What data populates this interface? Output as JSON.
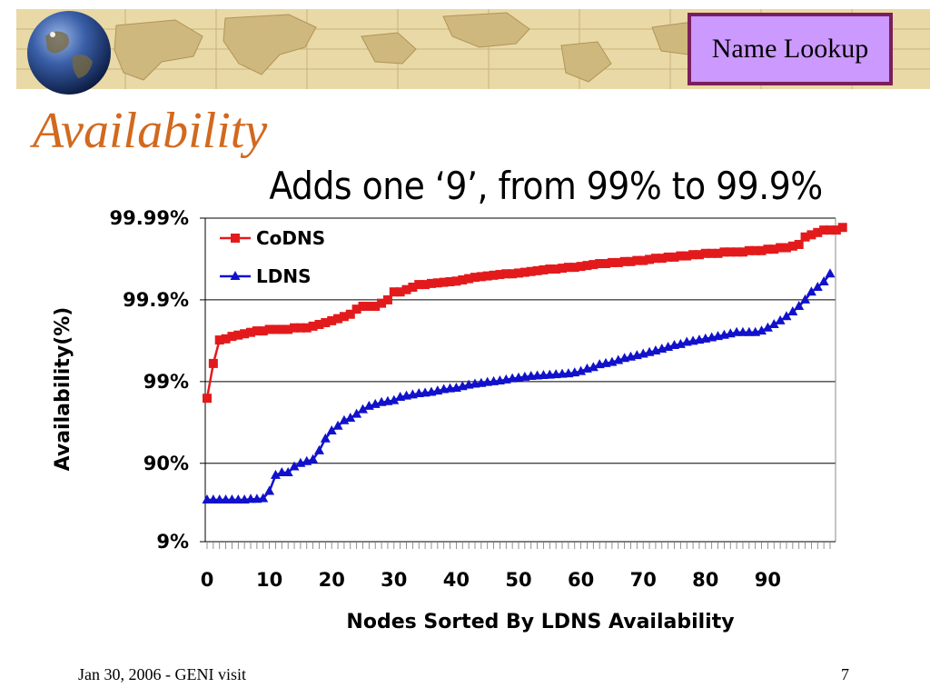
{
  "header": {
    "tag": "Name Lookup",
    "title": "Availability",
    "subtitle": "Adds one ‘9’, from 99% to 99.9%"
  },
  "footer": {
    "left": "Jan 30, 2006 - GENI visit",
    "page": "7"
  },
  "colors": {
    "banner": "#e9d9a6",
    "map_land": "#cfb87e",
    "tag_fill": "#cc99ff",
    "tag_border": "#7a1f5c",
    "title": "#d2691e",
    "codns": "#e31a1c",
    "ldns": "#1111cc"
  },
  "icons": {
    "banner_image": "world-map",
    "logo": "globe-icon"
  },
  "chart_data": {
    "type": "line",
    "title": "",
    "xlabel": "Nodes Sorted By LDNS Availability",
    "ylabel": "Availability(%)",
    "x_ticks": [
      "0",
      "10",
      "20",
      "30",
      "40",
      "50",
      "60",
      "70",
      "80",
      "90"
    ],
    "y_scale": "log of unavailability (nines)",
    "y_ticks": [
      "99.99%",
      "99.9%",
      "99%",
      "90%",
      "9%"
    ],
    "xlim": [
      0,
      100
    ],
    "grid": "horizontal",
    "legend": "top-left",
    "series": [
      {
        "name": "CoDNS",
        "color": "#e31a1c",
        "marker": "square",
        "values": [
          98.4,
          99.4,
          99.69,
          99.7,
          99.72,
          99.73,
          99.74,
          99.75,
          99.76,
          99.76,
          99.77,
          99.77,
          99.77,
          99.77,
          99.78,
          99.78,
          99.78,
          99.79,
          99.8,
          99.81,
          99.82,
          99.83,
          99.84,
          99.85,
          99.87,
          99.88,
          99.88,
          99.88,
          99.89,
          99.9,
          99.92,
          99.92,
          99.925,
          99.93,
          99.935,
          99.935,
          99.937,
          99.938,
          99.939,
          99.94,
          99.941,
          99.943,
          99.945,
          99.947,
          99.948,
          99.949,
          99.95,
          99.951,
          99.952,
          99.952,
          99.953,
          99.954,
          99.955,
          99.956,
          99.957,
          99.958,
          99.958,
          99.959,
          99.96,
          99.96,
          99.961,
          99.962,
          99.963,
          99.964,
          99.964,
          99.965,
          99.965,
          99.966,
          99.966,
          99.967,
          99.967,
          99.968,
          99.969,
          99.969,
          99.97,
          99.97,
          99.971,
          99.971,
          99.972,
          99.972,
          99.973,
          99.973,
          99.973,
          99.974,
          99.974,
          99.974,
          99.974,
          99.975,
          99.975,
          99.975,
          99.976,
          99.976,
          99.977,
          99.977,
          99.978,
          99.979,
          99.983,
          99.984,
          99.985,
          99.986,
          99.986,
          99.986,
          99.987
        ]
      },
      {
        "name": "LDNS",
        "color": "#1111cc",
        "marker": "triangle",
        "values": [
          72,
          72,
          72,
          72,
          72,
          72,
          72,
          72.5,
          72.5,
          73,
          78,
          86,
          87,
          87,
          89,
          90,
          90.5,
          91,
          93,
          95,
          96,
          96.5,
          97,
          97.2,
          97.5,
          97.8,
          98,
          98.1,
          98.2,
          98.25,
          98.3,
          98.45,
          98.5,
          98.55,
          98.6,
          98.62,
          98.65,
          98.7,
          98.75,
          98.78,
          98.8,
          98.85,
          98.9,
          98.93,
          98.95,
          98.98,
          99,
          99.02,
          99.05,
          99.08,
          99.1,
          99.12,
          99.14,
          99.15,
          99.16,
          99.17,
          99.18,
          99.19,
          99.2,
          99.22,
          99.25,
          99.3,
          99.33,
          99.38,
          99.4,
          99.42,
          99.45,
          99.48,
          99.5,
          99.52,
          99.54,
          99.56,
          99.58,
          99.6,
          99.62,
          99.64,
          99.65,
          99.67,
          99.68,
          99.69,
          99.7,
          99.71,
          99.72,
          99.73,
          99.74,
          99.75,
          99.75,
          99.75,
          99.75,
          99.76,
          99.78,
          99.8,
          99.82,
          99.84,
          99.86,
          99.88,
          99.9,
          99.92,
          99.93,
          99.94,
          99.952
        ]
      }
    ]
  }
}
